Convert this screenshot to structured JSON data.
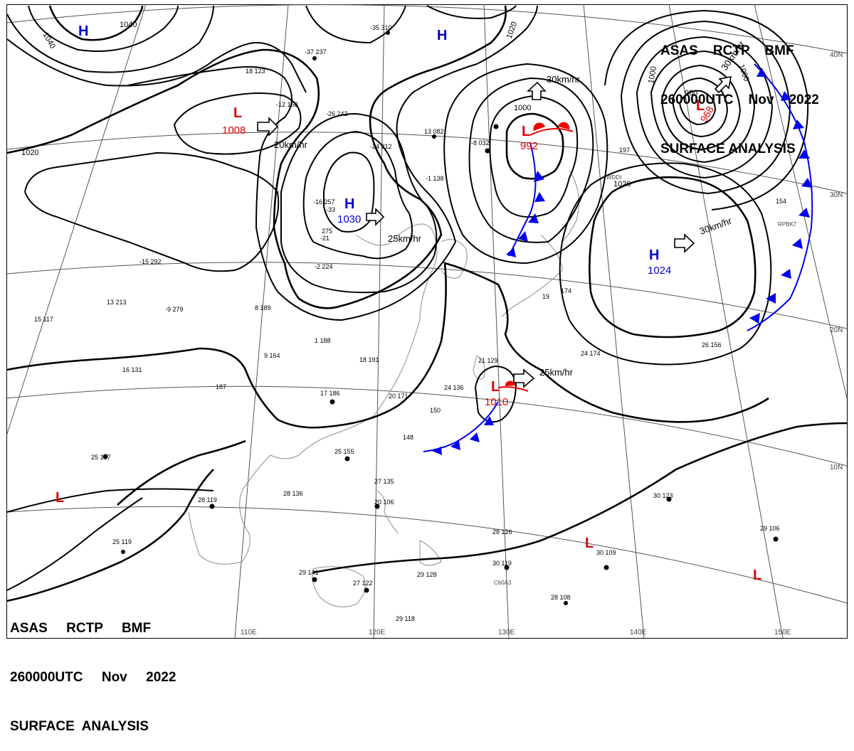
{
  "header_top_right": {
    "line1": "ASAS    RCTP    BMF",
    "line2": "260000UTC    Nov    2022",
    "line3": "SURFACE ANALYSIS"
  },
  "header_bottom_left": {
    "line1": "ASAS     RCTP     BMF",
    "line2": "260000UTC     Nov     2022",
    "line3": "SURFACE  ANALYSIS"
  },
  "longitude_labels": [
    "110E",
    "120E",
    "130E",
    "140E",
    "150E"
  ],
  "latitude_labels": [
    "40N",
    "30N",
    "20N",
    "10N"
  ],
  "pressure_centers": [
    {
      "symbol": "H",
      "value": "",
      "color": "#0000cc"
    },
    {
      "symbol": "H",
      "value": "",
      "color": "#0000cc"
    },
    {
      "symbol": "L",
      "value": "1008",
      "color": "#dd0000"
    },
    {
      "symbol": "H",
      "value": "1030",
      "color": "#0000cc"
    },
    {
      "symbol": "L",
      "value": "992",
      "color": "#dd0000"
    },
    {
      "symbol": "L",
      "value": "968",
      "color": "#dd0000"
    },
    {
      "symbol": "H",
      "value": "1024",
      "color": "#0000cc"
    },
    {
      "symbol": "L",
      "value": "1010",
      "color": "#dd0000"
    },
    {
      "symbol": "L",
      "value": "",
      "color": "#dd0000"
    },
    {
      "symbol": "L",
      "value": "",
      "color": "#dd0000"
    },
    {
      "symbol": "L",
      "value": "",
      "color": "#dd0000"
    }
  ],
  "isobar_labels": [
    "1040",
    "1040",
    "1020",
    "1020",
    "1020",
    "1000",
    "1000",
    "1000",
    "980"
  ],
  "motion_labels": [
    "20km/hr",
    "25km/hr",
    "30km/hr",
    "30km/hr",
    "30km/hr",
    "25km/hr"
  ],
  "station_values": [
    "-35 310",
    "-37 237",
    "18 123",
    "-12 168",
    "-26 242",
    "-24 212",
    "13 082",
    "-8 032",
    "-1 138",
    "-16 257",
    "-21",
    "-33",
    "275",
    "-2 224",
    "8 189",
    "-9 279",
    "-15 292",
    "13 213",
    "15 117",
    "1 188",
    "9 164",
    "16 131",
    "18 191",
    "17 186",
    "187",
    "21 129",
    "24 136",
    "20 171",
    "150",
    "148",
    "25 155",
    "25 107",
    "28 119",
    "28 136",
    "27 135",
    "20 106",
    "25 119",
    "29 141",
    "27 122",
    "29 128",
    "29 118",
    "28 126",
    "30 119",
    "28 108",
    "30 123",
    "29 106",
    "30 109",
    "26 156",
    "24 174",
    "197",
    "154",
    "174",
    "19"
  ],
  "station_ids": [
    "WDDI",
    "RPBK7",
    "C60A3"
  ],
  "colors": {
    "high": "#0000cc",
    "low": "#dd0000",
    "cold_front": "#0000ee",
    "warm_front": "#ee0000",
    "isobar": "#000000",
    "grid": "#555555",
    "coast": "#8c8c8c"
  }
}
